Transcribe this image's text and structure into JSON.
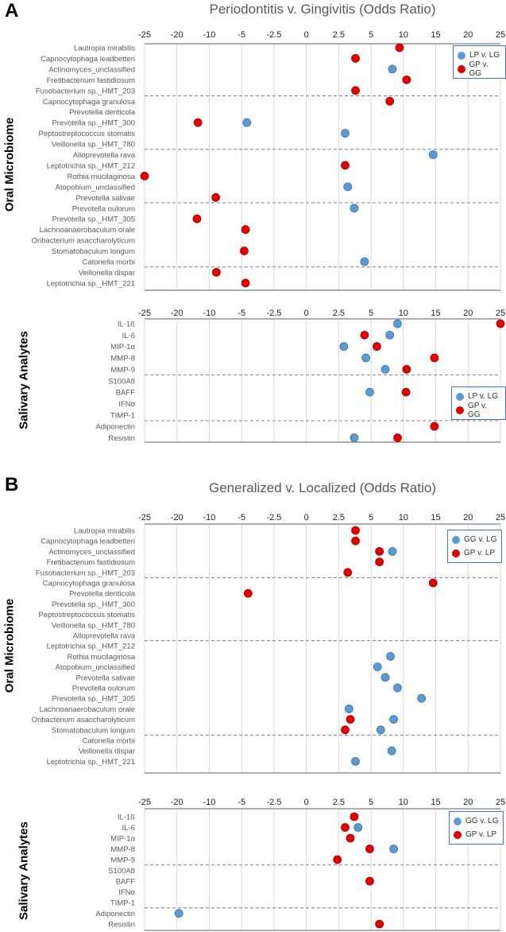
{
  "panels": [
    {
      "letter": "A",
      "title": "Periodontitis v. Gingivitis (Odds Ratio)"
    },
    {
      "letter": "B",
      "title": "Generalized v. Localized (Odds Ratio)"
    }
  ],
  "chart_data": [
    {
      "type": "scatter",
      "panel": "A",
      "group_label": "Oral Microbiome",
      "xlabel": "Odds Ratio",
      "xlim": [
        -25,
        25
      ],
      "x_ticks": [
        -25,
        -20,
        -10,
        -5,
        -2.5,
        0,
        2.5,
        5,
        10,
        15,
        20,
        25
      ],
      "grid": true,
      "legend": "top-right",
      "categories": [
        "Lautropia mirabilis",
        "Capnocytophaga leadbetteri",
        "Actinomyces_unclassified",
        "Fretibacterium fastidiosum",
        "Fusobacterium sp._HMT_203",
        "Capnocytophaga granulosa",
        "Prevotella denticola",
        "Prevotella sp._HMT_300",
        "Peptostreptococcus stomatis",
        "Veillonella sp._HMT_780",
        "Alloprevotella rava",
        "Leptotrichia sp._HMT_212",
        "Rothia mucilaginosa",
        "Atopobium_unclassified",
        "Prevotella salivae",
        "Prevotella oulorum",
        "Prevotella sp._HMT_305",
        "Lachnoanaerobaculum orale",
        "Oribacterium asaccharolyticum",
        "Stomatobaculum longum",
        "Catonella morbi",
        "Veillonella dispar",
        "Leptotrichia sp._HMT_221"
      ],
      "series": [
        {
          "name": "LP v. LG",
          "color": "#5b9bd5",
          "values": [
            null,
            null,
            8.3,
            null,
            null,
            null,
            null,
            -4.6,
            3.0,
            null,
            14.6,
            null,
            null,
            3.2,
            null,
            3.7,
            null,
            null,
            null,
            null,
            4.5,
            null,
            null
          ]
        },
        {
          "name": "GP v. GG",
          "color": "#e00000",
          "values": [
            9.4,
            3.8,
            null,
            10.5,
            3.8,
            7.9,
            null,
            -13.5,
            null,
            null,
            null,
            3.0,
            -25,
            null,
            -9.0,
            null,
            -13.8,
            -4.7,
            null,
            -4.8,
            null,
            -8.9,
            -4.7
          ]
        }
      ]
    },
    {
      "type": "scatter",
      "panel": "A",
      "group_label": "Salivary Analytes",
      "xlabel": "Odds Ratio",
      "xlim": [
        -25,
        25
      ],
      "x_ticks": [
        -25,
        -20,
        -10,
        -5,
        -2.5,
        0,
        2.5,
        5,
        10,
        15,
        20,
        25
      ],
      "grid": true,
      "legend": "right",
      "categories": [
        "IL-1ß",
        "IL-6",
        "MIP-1α",
        "MMP-8",
        "MMP-9",
        "S100A8",
        "BAFF",
        "IFNα",
        "TIMP-1",
        "Adiponectin",
        "Resistin"
      ],
      "series": [
        {
          "name": "LP v. LG",
          "color": "#5b9bd5",
          "values": [
            9.1,
            7.9,
            2.9,
            4.6,
            7.2,
            null,
            4.9,
            null,
            null,
            null,
            3.7
          ]
        },
        {
          "name": "GP v. GG",
          "color": "#e00000",
          "values": [
            25,
            4.5,
            5.9,
            14.8,
            10.5,
            null,
            10.4,
            null,
            null,
            14.8,
            9.1
          ]
        }
      ]
    },
    {
      "type": "scatter",
      "panel": "B",
      "group_label": "Oral Microbiome",
      "xlabel": "Odds Ratio",
      "xlim": [
        -25,
        25
      ],
      "x_ticks": [
        -25,
        -20,
        -10,
        -5,
        -2.5,
        0,
        2.5,
        5,
        10,
        15,
        20,
        25
      ],
      "grid": true,
      "legend": "top-right",
      "categories": [
        "Lautropia mirabilis",
        "Capnocytophaga leadbetteri",
        "Actinomyces_unclassified",
        "Fretibacterium fastidiosum",
        "Fusobacterium sp._HMT_203",
        "Capnocytophaga granulosa",
        "Prevotella denticola",
        "Prevotella sp._HMT_300",
        "Peptostreptococcus stomatis",
        "Veillonella sp._HMT_780",
        "Alloprevotella rava",
        "Leptotrichia sp._HMT_212",
        "Rothia mucilaginosa",
        "Atopobium_unclassified",
        "Prevotella salivae",
        "Prevotella oulorum",
        "Prevotella sp._HMT_305",
        "Lachnoanaerobaculum orale",
        "Oribacterium asaccharolyticum",
        "Stomatobaculum longum",
        "Catonella morbi",
        "Veillonella dispar",
        "Leptotrichia sp._HMT_221"
      ],
      "series": [
        {
          "name": "GG v. LG",
          "color": "#5b9bd5",
          "values": [
            null,
            null,
            8.3,
            null,
            null,
            null,
            null,
            null,
            null,
            null,
            null,
            null,
            8.0,
            6.0,
            7.2,
            9.1,
            12.8,
            3.3,
            8.5,
            6.5,
            null,
            8.2,
            3.8
          ]
        },
        {
          "name": "GP v. LP",
          "color": "#e00000",
          "values": [
            3.8,
            3.8,
            6.3,
            6.3,
            3.2,
            14.6,
            -4.5,
            null,
            null,
            null,
            null,
            null,
            null,
            null,
            null,
            null,
            null,
            null,
            3.4,
            3.0,
            null,
            null,
            null
          ]
        }
      ]
    },
    {
      "type": "scatter",
      "panel": "B",
      "group_label": "Salivary Analytes",
      "xlabel": "Odds Ratio",
      "xlim": [
        -25,
        25
      ],
      "x_ticks": [
        -25,
        -20,
        -10,
        -5,
        -2.5,
        0,
        2.5,
        5,
        10,
        15,
        20,
        25
      ],
      "grid": true,
      "legend": "top-right",
      "categories": [
        "IL-1ß",
        "IL-6",
        "MIP-1α",
        "MMP-8",
        "MMP-9",
        "S100A8",
        "BAFF",
        "IFNα",
        "TIMP-1",
        "Adiponectin",
        "Resistin"
      ],
      "series": [
        {
          "name": "GG v. LG",
          "color": "#5b9bd5",
          "values": [
            null,
            4.0,
            null,
            8.5,
            null,
            null,
            null,
            null,
            null,
            -19.4,
            null
          ]
        },
        {
          "name": "GP v. LP",
          "color": "#e00000",
          "values": [
            3.7,
            3.0,
            3.4,
            4.9,
            2.4,
            null,
            4.9,
            null,
            null,
            null,
            6.3
          ]
        }
      ]
    }
  ]
}
